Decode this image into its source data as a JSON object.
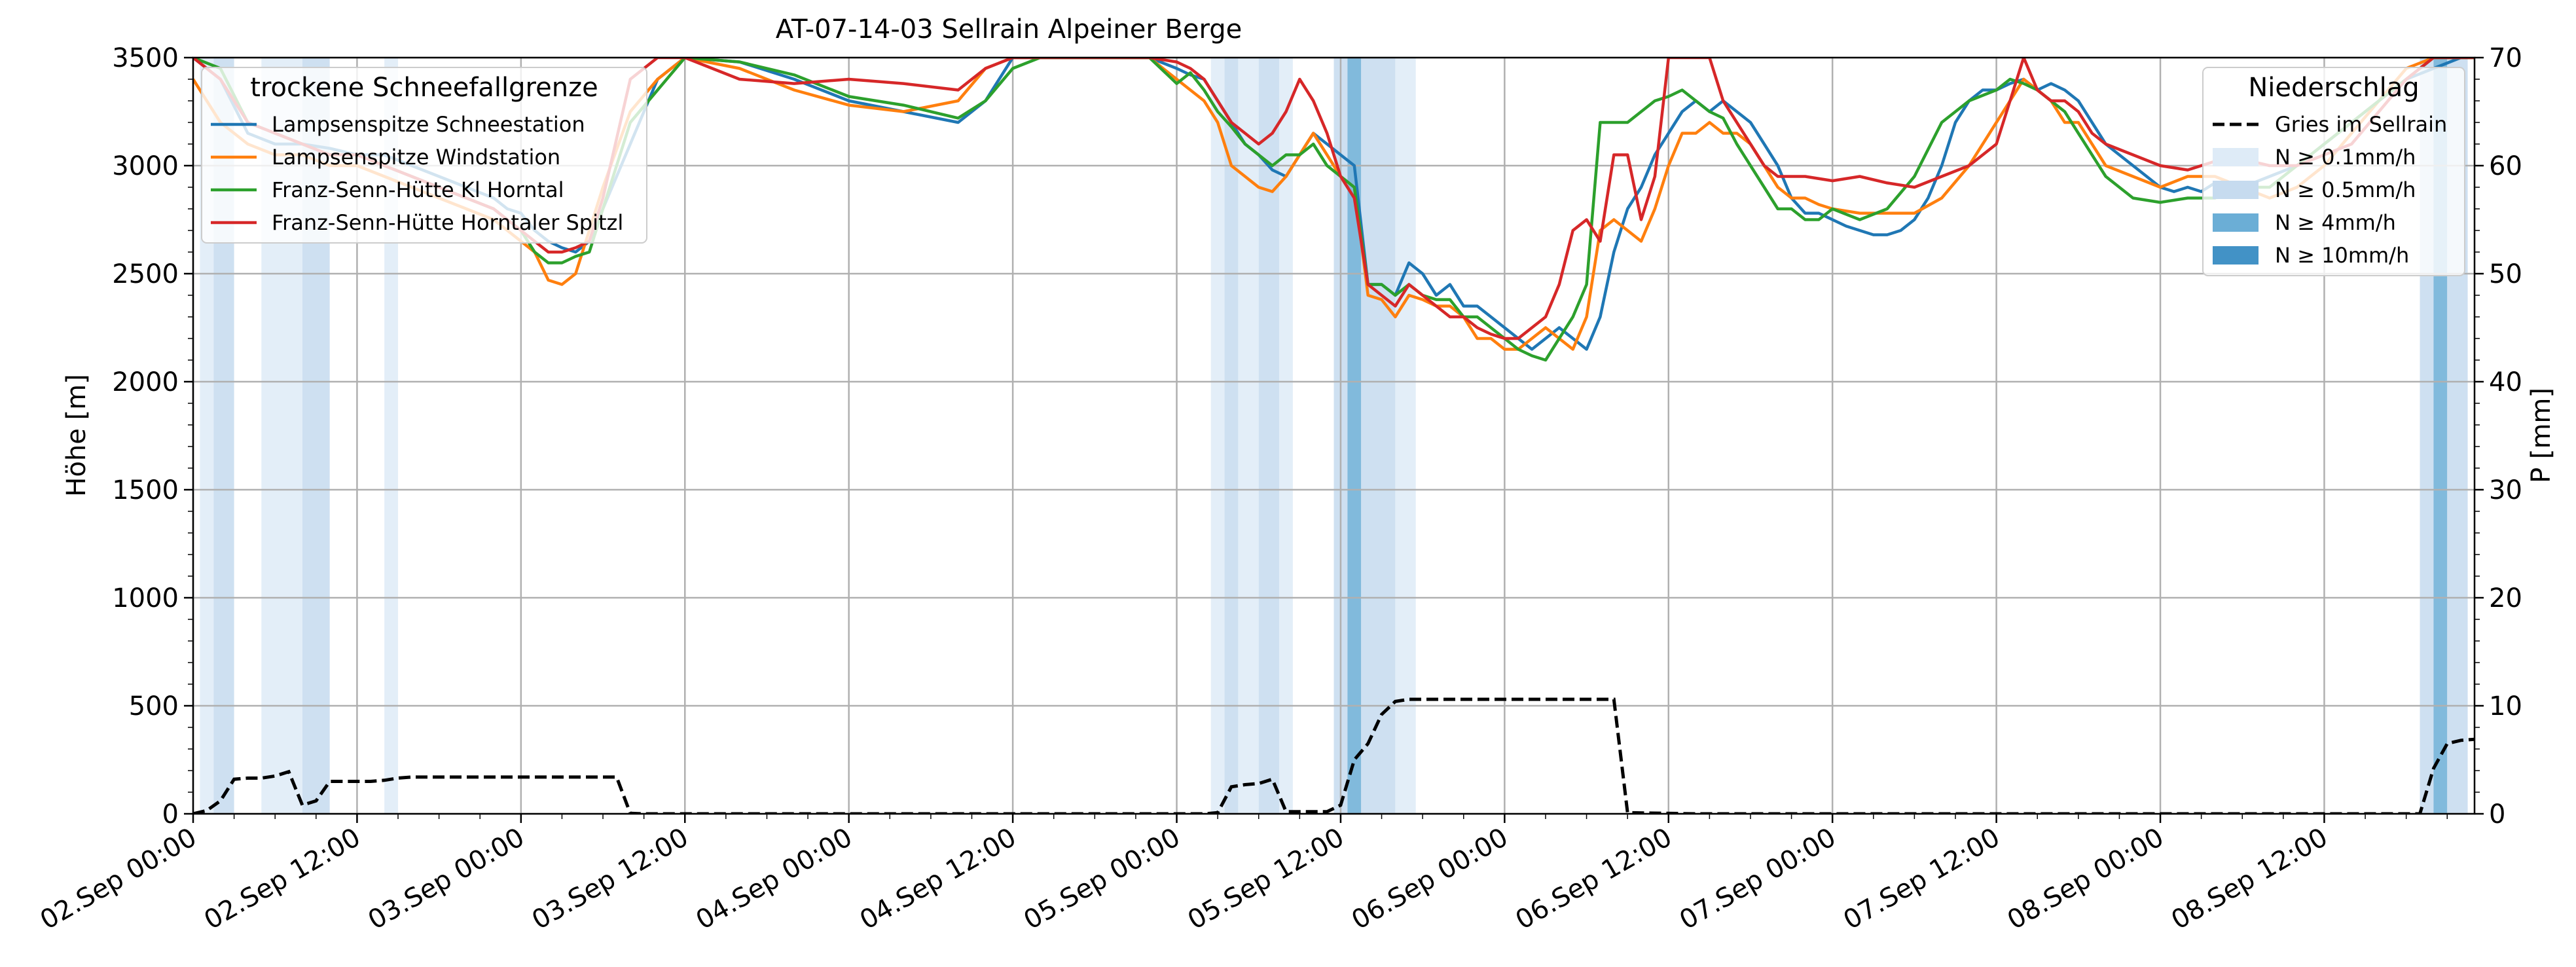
{
  "chart_data": {
    "type": "line",
    "title": "AT-07-14-03 Sellrain Alpeiner Berge",
    "ylabel": "Höhe [m]",
    "ylabel_right": "P [mm]",
    "ylim": [
      0,
      3500
    ],
    "ylim_right": [
      0,
      70
    ],
    "xlim_hours": [
      0,
      167
    ],
    "yticks": [
      0,
      500,
      1000,
      1500,
      2000,
      2500,
      3000,
      3500
    ],
    "yticks_right": [
      0,
      10,
      20,
      30,
      40,
      50,
      60,
      70
    ],
    "xticks": [
      {
        "h": 0,
        "label": "02.Sep 00:00"
      },
      {
        "h": 12,
        "label": "02.Sep 12:00"
      },
      {
        "h": 24,
        "label": "03.Sep 00:00"
      },
      {
        "h": 36,
        "label": "03.Sep 12:00"
      },
      {
        "h": 48,
        "label": "04.Sep 00:00"
      },
      {
        "h": 60,
        "label": "04.Sep 12:00"
      },
      {
        "h": 72,
        "label": "05.Sep 00:00"
      },
      {
        "h": 84,
        "label": "05.Sep 12:00"
      },
      {
        "h": 96,
        "label": "06.Sep 00:00"
      },
      {
        "h": 108,
        "label": "06.Sep 12:00"
      },
      {
        "h": 120,
        "label": "07.Sep 00:00"
      },
      {
        "h": 132,
        "label": "07.Sep 12:00"
      },
      {
        "h": 144,
        "label": "08.Sep 00:00"
      },
      {
        "h": 156,
        "label": "08.Sep 12:00"
      }
    ],
    "grid": true,
    "legend_left": {
      "title": "trockene Schneefallgrenze",
      "placement": "top-left"
    },
    "legend_right": {
      "title": "Niederschlag",
      "placement": "top-right",
      "items": [
        {
          "label": "Gries im Sellrain",
          "kind": "dashed",
          "color": "#000000"
        },
        {
          "label": "N ≥ 0.1mm/h",
          "kind": "patch",
          "color": "#deebf7"
        },
        {
          "label": "N ≥ 0.5mm/h",
          "kind": "patch",
          "color": "#c6dbef"
        },
        {
          "label": "N ≥ 4mm/h",
          "kind": "patch",
          "color": "#6baed6"
        },
        {
          "label": "N ≥ 10mm/h",
          "kind": "patch",
          "color": "#4292c6"
        }
      ]
    },
    "precip_bands": [
      {
        "from": 0.5,
        "to": 1.5,
        "level": 1
      },
      {
        "from": 1.5,
        "to": 3.0,
        "level": 2
      },
      {
        "from": 5.0,
        "to": 8.0,
        "level": 1
      },
      {
        "from": 8.0,
        "to": 10.0,
        "level": 2
      },
      {
        "from": 14.0,
        "to": 15.0,
        "level": 1
      },
      {
        "from": 74.5,
        "to": 75.5,
        "level": 1
      },
      {
        "from": 75.5,
        "to": 76.5,
        "level": 2
      },
      {
        "from": 76.5,
        "to": 78.0,
        "level": 1
      },
      {
        "from": 78.0,
        "to": 79.5,
        "level": 2
      },
      {
        "from": 79.5,
        "to": 80.5,
        "level": 1
      },
      {
        "from": 83.5,
        "to": 84.5,
        "level": 2
      },
      {
        "from": 84.5,
        "to": 85.5,
        "level": 3
      },
      {
        "from": 85.5,
        "to": 88.0,
        "level": 2
      },
      {
        "from": 88.0,
        "to": 89.5,
        "level": 1
      },
      {
        "from": 163.0,
        "to": 164.0,
        "level": 2
      },
      {
        "from": 164.0,
        "to": 165.0,
        "level": 3
      },
      {
        "from": 165.0,
        "to": 166.5,
        "level": 2
      }
    ],
    "precip_series": {
      "name": "Gries im Sellrain",
      "color": "#000000",
      "x": [
        0,
        1,
        2,
        3,
        4,
        5,
        6,
        7,
        8,
        9,
        10,
        11,
        12,
        13,
        14,
        15,
        16,
        20,
        25,
        30,
        31,
        32,
        33,
        40,
        50,
        60,
        70,
        74,
        75,
        76,
        77,
        78,
        79,
        80,
        81,
        82,
        83,
        84,
        85,
        86,
        87,
        88,
        89,
        90,
        95,
        100,
        103,
        104,
        105,
        110,
        120,
        130,
        140,
        150,
        160,
        163,
        164,
        165,
        166,
        167
      ],
      "values": [
        0,
        0.3,
        1.2,
        3.2,
        3.3,
        3.3,
        3.5,
        3.9,
        0.8,
        1.2,
        3.0,
        3.0,
        3.0,
        3.0,
        3.1,
        3.3,
        3.4,
        3.4,
        3.4,
        3.4,
        3.4,
        0.05,
        0,
        0,
        0,
        0,
        0,
        0,
        0.1,
        2.5,
        2.7,
        2.8,
        3.2,
        0.2,
        0.2,
        0.2,
        0.2,
        0.8,
        5.0,
        6.5,
        9.2,
        10.4,
        10.6,
        10.6,
        10.6,
        10.6,
        10.6,
        10.6,
        0.1,
        0,
        0,
        0,
        0,
        0,
        0,
        0,
        4.2,
        6.5,
        6.8,
        6.9
      ]
    },
    "series": [
      {
        "name": "Lampsenspitze Schneestation",
        "color": "#1f77b4",
        "x": [
          0,
          2,
          4,
          6,
          8,
          10,
          12,
          14,
          16,
          18,
          20,
          22,
          23,
          24,
          25,
          26,
          27,
          28,
          29,
          30,
          32,
          34,
          36,
          40,
          44,
          48,
          52,
          56,
          58,
          60,
          62,
          64,
          66,
          68,
          70,
          72,
          73,
          74,
          75,
          76,
          77,
          78,
          79,
          80,
          81,
          82,
          83,
          84,
          85,
          86,
          87,
          88,
          89,
          90,
          91,
          92,
          93,
          94,
          95,
          96,
          97,
          98,
          99,
          100,
          101,
          102,
          103,
          104,
          105,
          106,
          107,
          108,
          109,
          110,
          111,
          112,
          113,
          114,
          115,
          116,
          117,
          118,
          119,
          120,
          121,
          122,
          123,
          124,
          125,
          126,
          127,
          128,
          129,
          130,
          131,
          132,
          133,
          134,
          135,
          136,
          137,
          138,
          139,
          140,
          141,
          142,
          143,
          144,
          145,
          146,
          147,
          148,
          150,
          152,
          154,
          156,
          158,
          160,
          162,
          164,
          166,
          167
        ],
        "values": [
          3500,
          3400,
          3150,
          3100,
          3100,
          3080,
          3050,
          3050,
          3000,
          2950,
          2900,
          2850,
          2800,
          2780,
          2700,
          2650,
          2620,
          2600,
          2650,
          2800,
          3100,
          3400,
          3500,
          3480,
          3400,
          3300,
          3250,
          3200,
          3300,
          3500,
          3500,
          3500,
          3500,
          3500,
          3500,
          3450,
          3420,
          3400,
          3300,
          3200,
          3100,
          3050,
          2980,
          2950,
          3050,
          3150,
          3100,
          3050,
          3000,
          2450,
          2450,
          2400,
          2550,
          2500,
          2400,
          2450,
          2350,
          2350,
          2300,
          2250,
          2200,
          2150,
          2200,
          2250,
          2200,
          2150,
          2300,
          2600,
          2800,
          2900,
          3050,
          3150,
          3250,
          3300,
          3250,
          3300,
          3250,
          3200,
          3100,
          3000,
          2850,
          2780,
          2780,
          2750,
          2720,
          2700,
          2680,
          2680,
          2700,
          2750,
          2850,
          3000,
          3200,
          3300,
          3350,
          3350,
          3380,
          3400,
          3350,
          3380,
          3350,
          3300,
          3200,
          3100,
          3050,
          3000,
          2950,
          2900,
          2880,
          2900,
          2880,
          2920,
          2900,
          2950,
          3000,
          3100,
          3200,
          3300,
          3400,
          3450,
          3500,
          3500
        ]
      },
      {
        "name": "Lampsenspitze Windstation",
        "color": "#ff7f0e",
        "x": [
          0,
          2,
          4,
          6,
          8,
          10,
          12,
          14,
          16,
          18,
          20,
          22,
          23,
          24,
          25,
          26,
          27,
          28,
          29,
          30,
          32,
          34,
          36,
          40,
          44,
          48,
          52,
          56,
          58,
          60,
          62,
          64,
          66,
          68,
          70,
          72,
          73,
          74,
          75,
          76,
          77,
          78,
          79,
          80,
          81,
          82,
          83,
          84,
          85,
          86,
          87,
          88,
          89,
          90,
          91,
          92,
          93,
          94,
          95,
          96,
          97,
          98,
          99,
          100,
          101,
          102,
          103,
          104,
          105,
          106,
          107,
          108,
          109,
          110,
          111,
          112,
          113,
          114,
          115,
          116,
          117,
          118,
          119,
          120,
          122,
          124,
          126,
          128,
          130,
          132,
          133,
          134,
          135,
          136,
          137,
          138,
          139,
          140,
          142,
          144,
          146,
          148,
          150,
          152,
          154,
          156,
          158,
          160,
          162,
          164,
          166,
          167
        ],
        "values": [
          3400,
          3200,
          3100,
          3050,
          3050,
          3000,
          3000,
          2950,
          2900,
          2850,
          2800,
          2750,
          2700,
          2650,
          2600,
          2470,
          2450,
          2500,
          2700,
          2900,
          3250,
          3400,
          3500,
          3450,
          3350,
          3280,
          3250,
          3300,
          3450,
          3500,
          3500,
          3500,
          3500,
          3500,
          3500,
          3400,
          3350,
          3300,
          3200,
          3000,
          2950,
          2900,
          2880,
          2950,
          3050,
          3150,
          3050,
          2950,
          2900,
          2400,
          2380,
          2300,
          2400,
          2380,
          2350,
          2350,
          2300,
          2200,
          2200,
          2150,
          2150,
          2200,
          2250,
          2200,
          2150,
          2300,
          2700,
          2750,
          2700,
          2650,
          2800,
          3000,
          3150,
          3150,
          3200,
          3150,
          3150,
          3100,
          3000,
          2900,
          2850,
          2850,
          2820,
          2800,
          2780,
          2780,
          2780,
          2850,
          3000,
          3200,
          3300,
          3400,
          3350,
          3300,
          3200,
          3200,
          3100,
          3000,
          2950,
          2900,
          2950,
          2950,
          2900,
          2850,
          2900,
          3000,
          3150,
          3300,
          3450,
          3500,
          3500,
          3500
        ]
      },
      {
        "name": "Franz-Senn-Hütte Kl Horntal",
        "color": "#2ca02c",
        "x": [
          0,
          2,
          4,
          6,
          8,
          10,
          12,
          14,
          16,
          18,
          20,
          22,
          23,
          24,
          25,
          26,
          27,
          28,
          29,
          30,
          32,
          34,
          36,
          40,
          44,
          48,
          52,
          56,
          58,
          60,
          62,
          64,
          66,
          68,
          70,
          72,
          73,
          74,
          75,
          76,
          77,
          78,
          79,
          80,
          81,
          82,
          83,
          84,
          85,
          86,
          87,
          88,
          89,
          90,
          91,
          92,
          93,
          94,
          95,
          96,
          97,
          98,
          99,
          100,
          101,
          102,
          103,
          104,
          105,
          106,
          107,
          108,
          109,
          110,
          111,
          112,
          113,
          114,
          115,
          116,
          117,
          118,
          119,
          120,
          122,
          124,
          126,
          128,
          130,
          132,
          133,
          134,
          135,
          136,
          137,
          138,
          139,
          140,
          142,
          144,
          146,
          148,
          150,
          152,
          154,
          156,
          158,
          160,
          162,
          164,
          166,
          167
        ],
        "values": [
          3500,
          3450,
          3200,
          3150,
          3100,
          3050,
          3050,
          3000,
          2950,
          2900,
          2850,
          2800,
          2750,
          2700,
          2600,
          2550,
          2550,
          2580,
          2600,
          2800,
          3200,
          3350,
          3500,
          3480,
          3420,
          3320,
          3280,
          3220,
          3300,
          3450,
          3500,
          3500,
          3500,
          3500,
          3500,
          3380,
          3430,
          3350,
          3250,
          3180,
          3100,
          3050,
          3000,
          3050,
          3050,
          3100,
          3000,
          2950,
          2900,
          2450,
          2450,
          2400,
          2450,
          2400,
          2380,
          2380,
          2300,
          2300,
          2250,
          2200,
          2150,
          2120,
          2100,
          2200,
          2300,
          2450,
          3200,
          3200,
          3200,
          3250,
          3300,
          3320,
          3350,
          3300,
          3250,
          3220,
          3100,
          3000,
          2900,
          2800,
          2800,
          2750,
          2750,
          2800,
          2750,
          2800,
          2950,
          3200,
          3300,
          3350,
          3400,
          3380,
          3350,
          3300,
          3250,
          3150,
          3050,
          2950,
          2850,
          2830,
          2850,
          2850,
          2900,
          2900,
          3000,
          3100,
          3200,
          3300,
          3400,
          3500,
          3500,
          3500
        ]
      },
      {
        "name": "Franz-Senn-Hütte Horntaler Spitzl",
        "color": "#d62728",
        "x": [
          0,
          2,
          4,
          6,
          8,
          10,
          12,
          14,
          16,
          18,
          20,
          22,
          23,
          24,
          25,
          26,
          27,
          28,
          29,
          30,
          32,
          34,
          36,
          40,
          44,
          48,
          52,
          56,
          58,
          60,
          62,
          64,
          66,
          68,
          70,
          72,
          73,
          74,
          75,
          76,
          77,
          78,
          79,
          80,
          81,
          82,
          83,
          84,
          85,
          86,
          87,
          88,
          89,
          90,
          91,
          92,
          93,
          94,
          95,
          96,
          97,
          98,
          99,
          100,
          101,
          102,
          103,
          104,
          105,
          106,
          107,
          108,
          109,
          110,
          111,
          112,
          113,
          114,
          115,
          116,
          118,
          120,
          122,
          124,
          126,
          128,
          130,
          132,
          133,
          134,
          135,
          136,
          137,
          138,
          139,
          140,
          142,
          144,
          146,
          148,
          150,
          152,
          154,
          156,
          158,
          160,
          162,
          164,
          166,
          167
        ],
        "values": [
          3500,
          3400,
          3200,
          3150,
          3100,
          3050,
          3050,
          3000,
          2950,
          2900,
          2850,
          2800,
          2750,
          2700,
          2650,
          2600,
          2600,
          2620,
          2650,
          2850,
          3400,
          3500,
          3500,
          3400,
          3380,
          3400,
          3380,
          3350,
          3450,
          3500,
          3500,
          3500,
          3500,
          3500,
          3500,
          3480,
          3450,
          3400,
          3300,
          3200,
          3150,
          3100,
          3150,
          3250,
          3400,
          3300,
          3150,
          2950,
          2850,
          2450,
          2400,
          2350,
          2450,
          2400,
          2350,
          2300,
          2300,
          2250,
          2220,
          2200,
          2200,
          2250,
          2300,
          2450,
          2700,
          2750,
          2650,
          3050,
          3050,
          2750,
          2950,
          3500,
          3500,
          3500,
          3500,
          3300,
          3200,
          3100,
          3000,
          2950,
          2950,
          2930,
          2950,
          2920,
          2900,
          2950,
          3000,
          3100,
          3300,
          3500,
          3350,
          3300,
          3300,
          3250,
          3150,
          3100,
          3050,
          3000,
          2980,
          3020,
          3030,
          3000,
          3000,
          3050,
          3100,
          3250,
          3400,
          3500,
          3500,
          3500
        ]
      }
    ]
  }
}
